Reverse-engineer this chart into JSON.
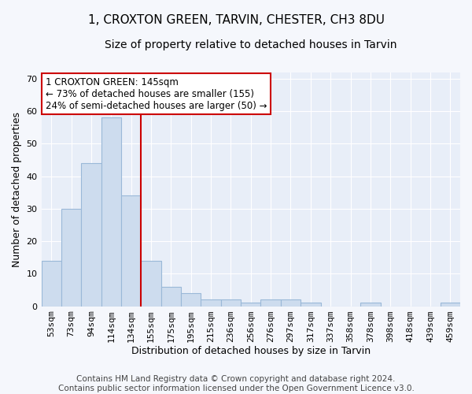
{
  "title": "1, CROXTON GREEN, TARVIN, CHESTER, CH3 8DU",
  "subtitle": "Size of property relative to detached houses in Tarvin",
  "xlabel": "Distribution of detached houses by size in Tarvin",
  "ylabel": "Number of detached properties",
  "categories": [
    "53sqm",
    "73sqm",
    "94sqm",
    "114sqm",
    "134sqm",
    "155sqm",
    "175sqm",
    "195sqm",
    "215sqm",
    "236sqm",
    "256sqm",
    "276sqm",
    "297sqm",
    "317sqm",
    "337sqm",
    "358sqm",
    "378sqm",
    "398sqm",
    "418sqm",
    "439sqm",
    "459sqm"
  ],
  "values": [
    14,
    30,
    44,
    58,
    34,
    14,
    6,
    4,
    2,
    2,
    1,
    2,
    2,
    1,
    0,
    0,
    1,
    0,
    0,
    0,
    1
  ],
  "bar_color": "#cddcee",
  "bar_edge_color": "#9ab8d8",
  "vline_x": 4.5,
  "vline_color": "#cc0000",
  "ylim": [
    0,
    72
  ],
  "yticks": [
    0,
    10,
    20,
    30,
    40,
    50,
    60,
    70
  ],
  "annotation_title": "1 CROXTON GREEN: 145sqm",
  "annotation_line1": "← 73% of detached houses are smaller (155)",
  "annotation_line2": "24% of semi-detached houses are larger (50) →",
  "annotation_box_color": "#ffffff",
  "annotation_box_edge": "#cc0000",
  "footer1": "Contains HM Land Registry data © Crown copyright and database right 2024.",
  "footer2": "Contains public sector information licensed under the Open Government Licence v3.0.",
  "plot_bg_color": "#e8eef8",
  "fig_bg_color": "#f5f7fc",
  "grid_color": "#ffffff",
  "title_fontsize": 11,
  "subtitle_fontsize": 10,
  "label_fontsize": 9,
  "tick_fontsize": 8,
  "footer_fontsize": 7.5,
  "annotation_fontsize": 8.5
}
